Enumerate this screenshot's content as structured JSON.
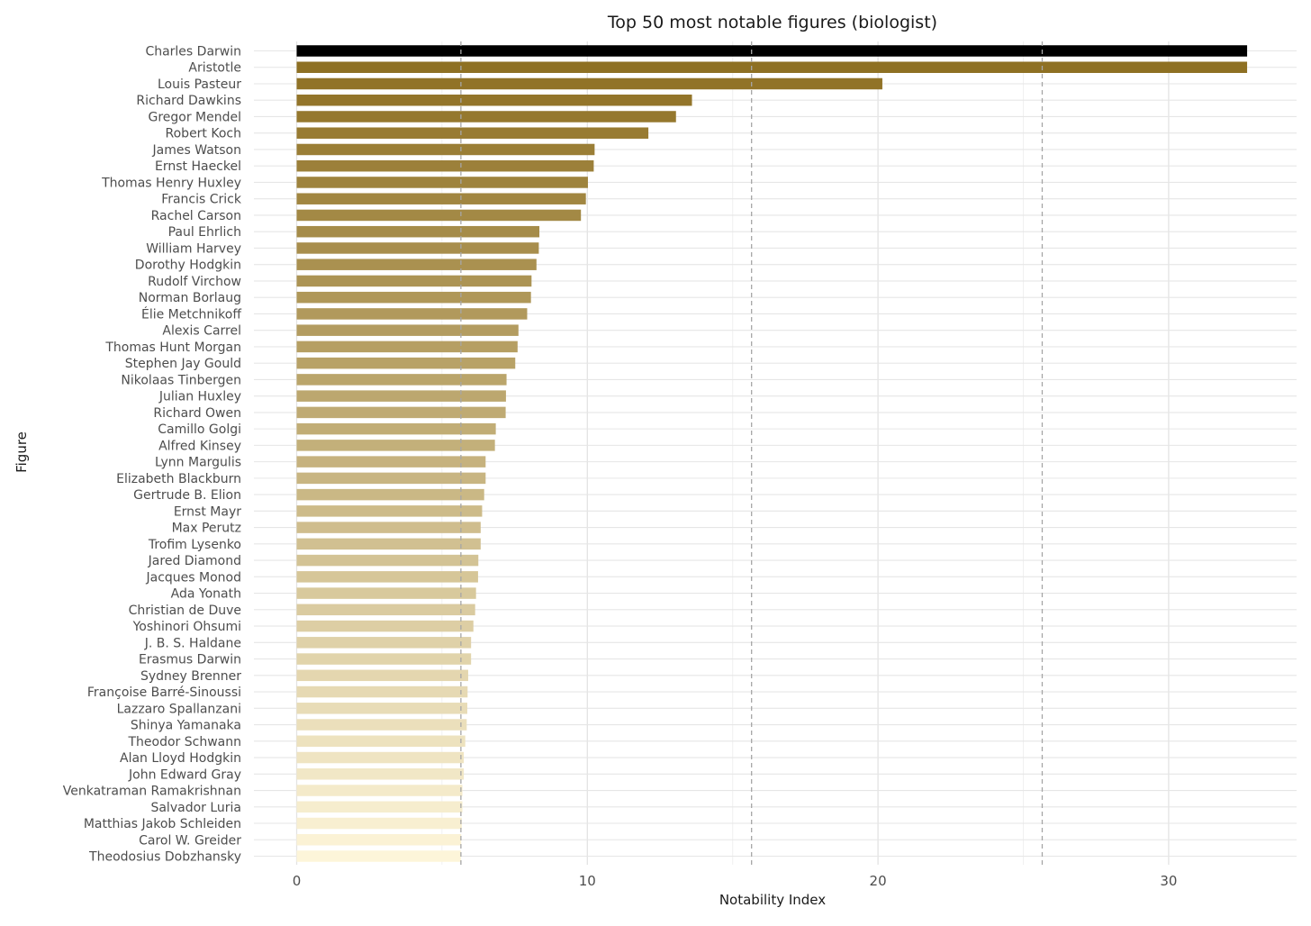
{
  "chart_data": {
    "type": "bar",
    "orientation": "horizontal",
    "title": "Top 50 most notable figures (biologist)",
    "xlabel": "Notability Index",
    "ylabel": "Figure",
    "xlim": [
      -1.5,
      34.3
    ],
    "xticks": [
      0,
      10,
      20,
      30
    ],
    "grid": true,
    "reference_lines": [
      5.65,
      15.65,
      25.65
    ],
    "color_high": "#000000",
    "color_gradient_dark": "#8c6d1f",
    "color_gradient_light": "#fdf5d9",
    "categories": [
      "Charles Darwin",
      "Aristotle",
      "Louis Pasteur",
      "Richard Dawkins",
      "Gregor Mendel",
      "Robert Koch",
      "James Watson",
      "Ernst Haeckel",
      "Thomas Henry Huxley",
      "Francis Crick",
      "Rachel Carson",
      "Paul Ehrlich",
      "William Harvey",
      "Dorothy Hodgkin",
      "Rudolf Virchow",
      "Norman Borlaug",
      "Élie Metchnikoff",
      "Alexis Carrel",
      "Thomas Hunt Morgan",
      "Stephen Jay Gould",
      "Nikolaas Tinbergen",
      "Julian Huxley",
      "Richard Owen",
      "Camillo Golgi",
      "Alfred Kinsey",
      "Lynn Margulis",
      "Elizabeth Blackburn",
      "Gertrude B. Elion",
      "Ernst Mayr",
      "Max Perutz",
      "Trofim Lysenko",
      "Jared Diamond",
      "Jacques Monod",
      "Ada Yonath",
      "Christian de Duve",
      "Yoshinori Ohsumi",
      "J. B. S. Haldane",
      "Erasmus Darwin",
      "Sydney Brenner",
      "Françoise Barré-Sinoussi",
      "Lazzaro Spallanzani",
      "Shinya Yamanaka",
      "Theodor Schwann",
      "Alan Lloyd Hodgkin",
      "John Edward Gray",
      "Venkatraman Ramakrishnan",
      "Salvador Luria",
      "Matthias Jakob Schleiden",
      "Carol W. Greider",
      "Theodosius Dobzhansky"
    ],
    "values": [
      32.7,
      32.7,
      20.15,
      13.6,
      13.05,
      12.1,
      10.25,
      10.22,
      10.02,
      9.95,
      9.78,
      8.35,
      8.33,
      8.25,
      8.08,
      8.06,
      7.93,
      7.63,
      7.6,
      7.52,
      7.22,
      7.2,
      7.19,
      6.85,
      6.82,
      6.5,
      6.5,
      6.45,
      6.38,
      6.33,
      6.33,
      6.25,
      6.24,
      6.17,
      6.14,
      6.08,
      6.0,
      6.0,
      5.9,
      5.88,
      5.87,
      5.85,
      5.8,
      5.75,
      5.75,
      5.7,
      5.7,
      5.68,
      5.66,
      5.65
    ]
  }
}
